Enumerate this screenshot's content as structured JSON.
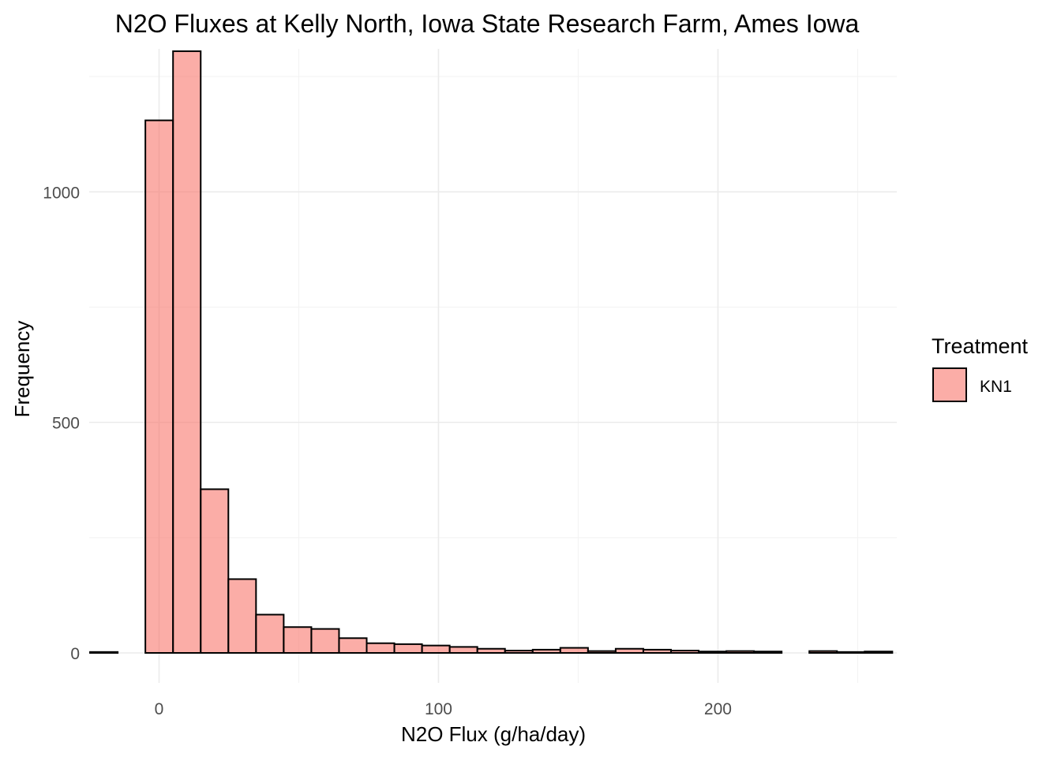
{
  "chart_data": {
    "type": "bar",
    "title": "N2O Fluxes at Kelly North, Iowa State Research Farm, Ames Iowa",
    "xlabel": "N2O Flux (g/ha/day)",
    "ylabel": "Frequency",
    "xlim": [
      -25,
      264
    ],
    "ylim": [
      -65,
      1310
    ],
    "x_ticks": [
      0,
      100,
      200
    ],
    "x_tick_labels": [
      "0",
      "100",
      "200"
    ],
    "y_ticks": [
      0,
      500,
      1000
    ],
    "y_tick_labels": [
      "0",
      "500",
      "1000"
    ],
    "bin_width": 9.9,
    "bin_starts": [
      -24.7,
      -14.8,
      -4.9,
      5.0,
      14.9,
      24.8,
      34.7,
      44.6,
      54.5,
      64.4,
      74.3,
      84.2,
      94.1,
      104.0,
      113.9,
      123.8,
      133.7,
      143.6,
      153.5,
      163.4,
      173.3,
      183.2,
      193.1,
      203.0,
      212.9,
      222.8,
      232.7,
      242.6,
      252.5
    ],
    "series": [
      {
        "name": "KN1",
        "color": "#f8766d",
        "values": [
          2,
          0,
          1155,
          1305,
          355,
          160,
          83,
          56,
          52,
          32,
          21,
          19,
          16,
          13,
          9,
          5,
          7,
          11,
          4,
          9,
          7,
          5,
          3,
          4,
          3,
          0,
          4,
          2,
          3
        ]
      }
    ],
    "grid": true,
    "legend": {
      "title": "Treatment",
      "position": "right",
      "entries": [
        "KN1"
      ]
    }
  }
}
